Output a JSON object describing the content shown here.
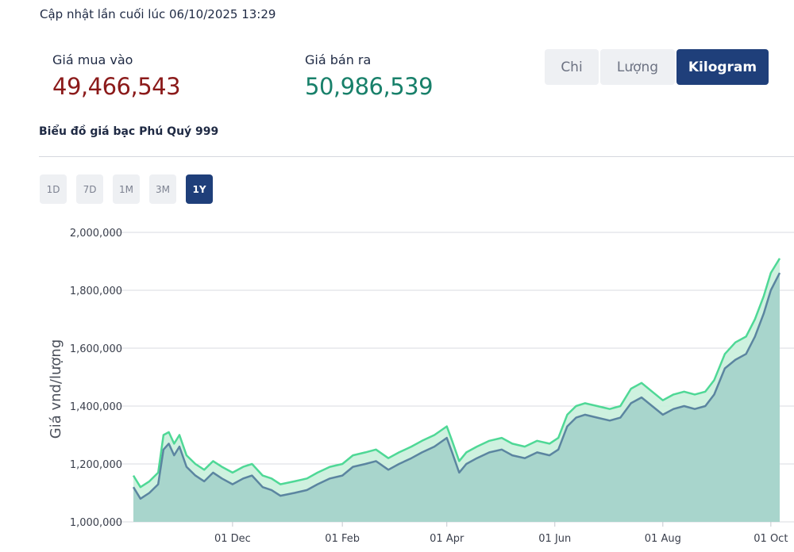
{
  "header": {
    "updated_text": "Cập nhật lần cuối lúc 06/10/2025 13:29"
  },
  "prices": {
    "buy_label": "Giá mua vào",
    "buy_value": "49,466,543",
    "sell_label": "Giá bán ra",
    "sell_value": "50,986,539"
  },
  "unit_tabs": [
    {
      "label": "Chi",
      "active": false
    },
    {
      "label": "Lượng",
      "active": false
    },
    {
      "label": "Kilogram",
      "active": true
    }
  ],
  "chart_title": "Biểu đồ giá bạc Phú Quý 999",
  "range_buttons": [
    {
      "label": "1D",
      "active": false
    },
    {
      "label": "7D",
      "active": false
    },
    {
      "label": "1M",
      "active": false
    },
    {
      "label": "3M",
      "active": false
    },
    {
      "label": "1Y",
      "active": true
    }
  ],
  "colors": {
    "buy_line": "#5b85a0",
    "sell_line": "#4fd896",
    "fill_area": "#a8d5cc",
    "band_fill": "#c9f0dc",
    "active_button": "#1f3f7a",
    "buy_price_text": "#8b1a1a",
    "sell_price_text": "#18806a"
  },
  "chart_data": {
    "type": "area",
    "ylabel": "Giá vnd/lượng",
    "ylim": [
      1000000,
      2000000
    ],
    "yticks": [
      "2,000,000",
      "1,800,000",
      "1,600,000",
      "1,400,000",
      "1,200,000",
      "1,000,000"
    ],
    "ytick_values": [
      2000000,
      1800000,
      1600000,
      1400000,
      1200000,
      1000000
    ],
    "xlim": [
      "2024-10-06",
      "2025-10-06"
    ],
    "xticks": [
      "01 Dec",
      "01 Feb",
      "01 Apr",
      "01 Jun",
      "01 Aug",
      "01 Oct"
    ],
    "xtick_dates": [
      "2024-12-01",
      "2025-02-01",
      "2025-04-01",
      "2025-06-01",
      "2025-08-01",
      "2025-10-01"
    ],
    "grid": "horizontal",
    "series": [
      {
        "role": "buy",
        "points": [
          [
            "2024-10-06",
            1120000
          ],
          [
            "2024-10-10",
            1080000
          ],
          [
            "2024-10-15",
            1100000
          ],
          [
            "2024-10-20",
            1130000
          ],
          [
            "2024-10-23",
            1250000
          ],
          [
            "2024-10-26",
            1270000
          ],
          [
            "2024-10-29",
            1230000
          ],
          [
            "2024-11-01",
            1260000
          ],
          [
            "2024-11-05",
            1190000
          ],
          [
            "2024-11-10",
            1160000
          ],
          [
            "2024-11-15",
            1140000
          ],
          [
            "2024-11-20",
            1170000
          ],
          [
            "2024-11-25",
            1150000
          ],
          [
            "2024-12-01",
            1130000
          ],
          [
            "2024-12-07",
            1150000
          ],
          [
            "2024-12-12",
            1160000
          ],
          [
            "2024-12-18",
            1120000
          ],
          [
            "2024-12-23",
            1110000
          ],
          [
            "2024-12-28",
            1090000
          ],
          [
            "2025-01-05",
            1100000
          ],
          [
            "2025-01-12",
            1110000
          ],
          [
            "2025-01-18",
            1130000
          ],
          [
            "2025-01-25",
            1150000
          ],
          [
            "2025-02-01",
            1160000
          ],
          [
            "2025-02-07",
            1190000
          ],
          [
            "2025-02-14",
            1200000
          ],
          [
            "2025-02-20",
            1210000
          ],
          [
            "2025-02-27",
            1180000
          ],
          [
            "2025-03-05",
            1200000
          ],
          [
            "2025-03-12",
            1220000
          ],
          [
            "2025-03-18",
            1240000
          ],
          [
            "2025-03-25",
            1260000
          ],
          [
            "2025-04-01",
            1290000
          ],
          [
            "2025-04-04",
            1240000
          ],
          [
            "2025-04-08",
            1170000
          ],
          [
            "2025-04-12",
            1200000
          ],
          [
            "2025-04-18",
            1220000
          ],
          [
            "2025-04-25",
            1240000
          ],
          [
            "2025-05-02",
            1250000
          ],
          [
            "2025-05-08",
            1230000
          ],
          [
            "2025-05-15",
            1220000
          ],
          [
            "2025-05-22",
            1240000
          ],
          [
            "2025-05-29",
            1230000
          ],
          [
            "2025-06-03",
            1250000
          ],
          [
            "2025-06-08",
            1330000
          ],
          [
            "2025-06-13",
            1360000
          ],
          [
            "2025-06-18",
            1370000
          ],
          [
            "2025-06-25",
            1360000
          ],
          [
            "2025-07-02",
            1350000
          ],
          [
            "2025-07-08",
            1360000
          ],
          [
            "2025-07-14",
            1410000
          ],
          [
            "2025-07-20",
            1430000
          ],
          [
            "2025-07-26",
            1400000
          ],
          [
            "2025-08-01",
            1370000
          ],
          [
            "2025-08-07",
            1390000
          ],
          [
            "2025-08-13",
            1400000
          ],
          [
            "2025-08-19",
            1390000
          ],
          [
            "2025-08-25",
            1400000
          ],
          [
            "2025-08-30",
            1440000
          ],
          [
            "2025-09-05",
            1530000
          ],
          [
            "2025-09-11",
            1560000
          ],
          [
            "2025-09-17",
            1580000
          ],
          [
            "2025-09-22",
            1640000
          ],
          [
            "2025-09-27",
            1720000
          ],
          [
            "2025-10-01",
            1800000
          ],
          [
            "2025-10-06",
            1860000
          ]
        ]
      },
      {
        "role": "sell",
        "points": [
          [
            "2024-10-06",
            1160000
          ],
          [
            "2024-10-10",
            1120000
          ],
          [
            "2024-10-15",
            1140000
          ],
          [
            "2024-10-20",
            1170000
          ],
          [
            "2024-10-23",
            1300000
          ],
          [
            "2024-10-26",
            1310000
          ],
          [
            "2024-10-29",
            1270000
          ],
          [
            "2024-11-01",
            1300000
          ],
          [
            "2024-11-05",
            1230000
          ],
          [
            "2024-11-10",
            1200000
          ],
          [
            "2024-11-15",
            1180000
          ],
          [
            "2024-11-20",
            1210000
          ],
          [
            "2024-11-25",
            1190000
          ],
          [
            "2024-12-01",
            1170000
          ],
          [
            "2024-12-07",
            1190000
          ],
          [
            "2024-12-12",
            1200000
          ],
          [
            "2024-12-18",
            1160000
          ],
          [
            "2024-12-23",
            1150000
          ],
          [
            "2024-12-28",
            1130000
          ],
          [
            "2025-01-05",
            1140000
          ],
          [
            "2025-01-12",
            1150000
          ],
          [
            "2025-01-18",
            1170000
          ],
          [
            "2025-01-25",
            1190000
          ],
          [
            "2025-02-01",
            1200000
          ],
          [
            "2025-02-07",
            1230000
          ],
          [
            "2025-02-14",
            1240000
          ],
          [
            "2025-02-20",
            1250000
          ],
          [
            "2025-02-27",
            1220000
          ],
          [
            "2025-03-05",
            1240000
          ],
          [
            "2025-03-12",
            1260000
          ],
          [
            "2025-03-18",
            1280000
          ],
          [
            "2025-03-25",
            1300000
          ],
          [
            "2025-04-01",
            1330000
          ],
          [
            "2025-04-04",
            1280000
          ],
          [
            "2025-04-08",
            1210000
          ],
          [
            "2025-04-12",
            1240000
          ],
          [
            "2025-04-18",
            1260000
          ],
          [
            "2025-04-25",
            1280000
          ],
          [
            "2025-05-02",
            1290000
          ],
          [
            "2025-05-08",
            1270000
          ],
          [
            "2025-05-15",
            1260000
          ],
          [
            "2025-05-22",
            1280000
          ],
          [
            "2025-05-29",
            1270000
          ],
          [
            "2025-06-03",
            1290000
          ],
          [
            "2025-06-08",
            1370000
          ],
          [
            "2025-06-13",
            1400000
          ],
          [
            "2025-06-18",
            1410000
          ],
          [
            "2025-06-25",
            1400000
          ],
          [
            "2025-07-02",
            1390000
          ],
          [
            "2025-07-08",
            1400000
          ],
          [
            "2025-07-14",
            1460000
          ],
          [
            "2025-07-20",
            1480000
          ],
          [
            "2025-07-26",
            1450000
          ],
          [
            "2025-08-01",
            1420000
          ],
          [
            "2025-08-07",
            1440000
          ],
          [
            "2025-08-13",
            1450000
          ],
          [
            "2025-08-19",
            1440000
          ],
          [
            "2025-08-25",
            1450000
          ],
          [
            "2025-08-30",
            1490000
          ],
          [
            "2025-09-05",
            1580000
          ],
          [
            "2025-09-11",
            1620000
          ],
          [
            "2025-09-17",
            1640000
          ],
          [
            "2025-09-22",
            1700000
          ],
          [
            "2025-09-27",
            1780000
          ],
          [
            "2025-10-01",
            1860000
          ],
          [
            "2025-10-06",
            1910000
          ]
        ]
      }
    ]
  }
}
